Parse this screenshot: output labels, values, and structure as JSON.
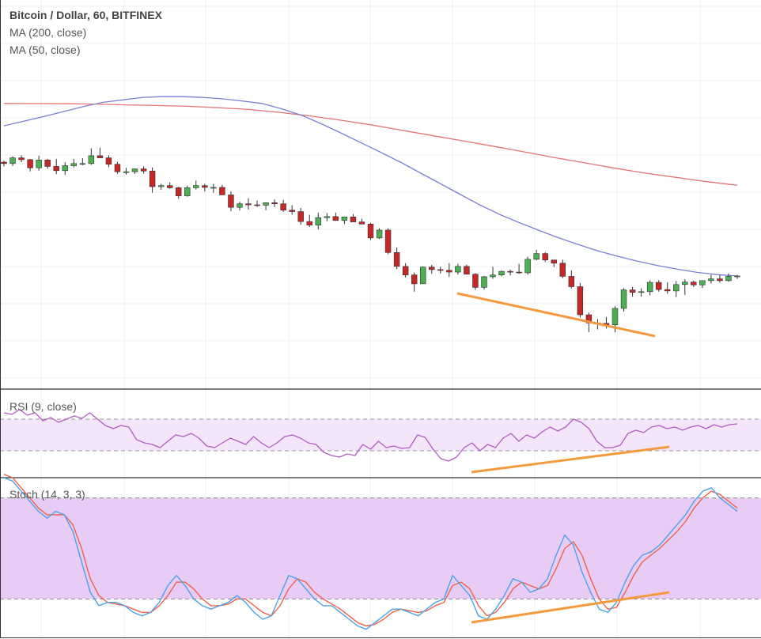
{
  "chart_data": {
    "type": "candlestick",
    "title": "Bitcoin / Dollar, 60, BITFINEX",
    "symbol": "Bitcoin / Dollar",
    "interval": "60",
    "exchange": "BITFINEX",
    "colors": {
      "up": "#4caf50",
      "down": "#c62828",
      "ma200": "#e57373",
      "ma50": "#7b7fd6",
      "rsi": "#b05cc4",
      "stoch_k": "#4aa3e8",
      "stoch_d": "#f0614a",
      "trendline": "#f59a3c",
      "grid": "#eef2f6",
      "rsi_band": "#f3e6fa",
      "stoch_band": "#e8ccf5"
    },
    "price_pane": {
      "ylim": [
        0,
        100
      ],
      "legend": [
        "MA (200, close)",
        "MA (50, close)"
      ],
      "candles": [
        [
          60.0,
          60.4,
          58.8,
          59.6
        ],
        [
          59.6,
          61.6,
          58.9,
          61.2
        ],
        [
          61.2,
          61.9,
          60.0,
          60.7
        ],
        [
          60.7,
          60.9,
          57.4,
          58.4
        ],
        [
          58.4,
          61.8,
          57.6,
          60.6
        ],
        [
          60.6,
          60.9,
          58.1,
          58.8
        ],
        [
          58.8,
          60.9,
          56.6,
          57.6
        ],
        [
          57.6,
          60.0,
          56.4,
          59.0
        ],
        [
          59.0,
          60.9,
          58.5,
          59.6
        ],
        [
          59.6,
          61.1,
          59.1,
          59.6
        ],
        [
          59.6,
          63.9,
          59.2,
          61.8
        ],
        [
          61.8,
          64.1,
          61.6,
          61.2
        ],
        [
          61.2,
          61.9,
          58.6,
          59.4
        ],
        [
          59.4,
          60.1,
          56.7,
          57.3
        ],
        [
          57.3,
          58.4,
          56.5,
          57.3
        ],
        [
          57.3,
          58.2,
          56.7,
          58.1
        ],
        [
          58.1,
          58.8,
          56.8,
          57.5
        ],
        [
          57.5,
          58.5,
          51.4,
          53.1
        ],
        [
          53.1,
          53.9,
          52.2,
          53.4
        ],
        [
          53.4,
          54.3,
          52.5,
          52.8
        ],
        [
          52.8,
          53.1,
          49.7,
          50.5
        ],
        [
          50.5,
          53.4,
          50.3,
          52.8
        ],
        [
          52.8,
          54.8,
          52.3,
          53.4
        ],
        [
          53.4,
          53.9,
          51.8,
          52.9
        ],
        [
          52.9,
          53.9,
          51.4,
          52.9
        ],
        [
          52.9,
          53.6,
          51.3,
          50.8
        ],
        [
          50.8,
          51.8,
          46.2,
          47.3
        ],
        [
          47.3,
          48.9,
          46.4,
          48.3
        ],
        [
          48.3,
          49.9,
          46.7,
          48.0
        ],
        [
          48.0,
          49.2,
          47.4,
          47.9
        ],
        [
          47.9,
          48.6,
          46.5,
          48.6
        ],
        [
          48.6,
          49.5,
          47.4,
          48.3
        ],
        [
          48.3,
          49.4,
          46.0,
          46.5
        ],
        [
          46.5,
          47.9,
          45.2,
          46.1
        ],
        [
          46.1,
          47.1,
          42.4,
          43.3
        ],
        [
          43.3,
          45.2,
          41.8,
          42.3
        ],
        [
          42.3,
          45.8,
          41.1,
          44.4
        ],
        [
          44.4,
          45.7,
          43.4,
          44.7
        ],
        [
          44.7,
          45.8,
          43.5,
          43.6
        ],
        [
          43.6,
          44.7,
          42.6,
          44.6
        ],
        [
          44.6,
          45.4,
          43.7,
          43.2
        ],
        [
          43.2,
          44.1,
          42.6,
          42.6
        ],
        [
          42.6,
          42.9,
          38.1,
          38.7
        ],
        [
          38.7,
          41.4,
          38.4,
          40.9
        ],
        [
          40.9,
          41.4,
          34.1,
          34.6
        ],
        [
          34.6,
          36.0,
          29.9,
          30.7
        ],
        [
          30.7,
          31.6,
          27.6,
          28.3
        ],
        [
          28.3,
          29.0,
          23.6,
          25.8
        ],
        [
          25.8,
          30.7,
          25.8,
          30.5
        ],
        [
          30.5,
          31.1,
          28.6,
          29.8
        ],
        [
          29.8,
          30.6,
          28.7,
          29.6
        ],
        [
          29.6,
          31.6,
          27.7,
          29.1
        ],
        [
          29.1,
          31.4,
          28.4,
          30.7
        ],
        [
          30.7,
          31.2,
          28.9,
          28.5
        ],
        [
          28.5,
          28.8,
          24.1,
          24.8
        ],
        [
          24.8,
          28.0,
          24.2,
          27.8
        ],
        [
          27.8,
          30.6,
          27.2,
          28.3
        ],
        [
          28.3,
          29.5,
          27.9,
          29.3
        ],
        [
          29.3,
          29.8,
          28.2,
          29.1
        ],
        [
          29.1,
          31.4,
          28.6,
          28.9
        ],
        [
          28.9,
          33.4,
          28.4,
          32.7
        ],
        [
          32.7,
          35.4,
          32.4,
          34.3
        ],
        [
          34.3,
          34.7,
          31.9,
          32.5
        ],
        [
          32.5,
          32.3,
          30.5,
          31.6
        ],
        [
          31.6,
          32.6,
          27.4,
          27.9
        ],
        [
          27.9,
          29.6,
          24.5,
          25.0
        ],
        [
          25.0,
          26.1,
          16.3,
          17.1
        ],
        [
          17.1,
          17.7,
          12.2,
          14.8
        ],
        [
          14.8,
          15.9,
          13.0,
          14.7
        ],
        [
          14.7,
          16.5,
          13.3,
          14.3
        ],
        [
          14.3,
          19.5,
          12.2,
          18.9
        ],
        [
          18.9,
          24.6,
          18.0,
          24.1
        ],
        [
          24.1,
          24.9,
          22.2,
          23.4
        ],
        [
          23.4,
          24.5,
          22.2,
          23.6
        ],
        [
          23.6,
          26.8,
          22.6,
          26.2
        ],
        [
          26.2,
          26.8,
          23.6,
          24.2
        ],
        [
          24.2,
          26.2,
          23.0,
          23.8
        ],
        [
          23.8,
          26.6,
          22.1,
          25.6
        ],
        [
          25.6,
          27.1,
          22.7,
          26.3
        ],
        [
          26.3,
          26.7,
          24.9,
          25.5
        ],
        [
          25.5,
          26.5,
          24.6,
          26.7
        ],
        [
          26.7,
          28.4,
          25.9,
          27.2
        ],
        [
          27.2,
          28.3,
          26.1,
          26.7
        ],
        [
          26.7,
          28.7,
          26.4,
          27.9
        ],
        [
          27.9,
          28.3,
          27.2,
          28.0
        ]
      ]
    },
    "ma200": [
      76.5,
      76.45,
      76.4,
      76.3,
      76.1,
      75.9,
      75.7,
      75.3,
      74.8,
      74.0,
      73.0,
      71.8,
      70.5,
      69.0,
      67.5,
      66.0,
      64.5,
      62.9,
      61.3,
      59.8,
      58.3,
      56.9,
      55.7,
      54.5,
      53.5
    ],
    "ma50": [
      70.2,
      71.5,
      72.8,
      74.2,
      75.6,
      76.8,
      77.5,
      78.2,
      78.4,
      78.4,
      78.2,
      77.8,
      77.2,
      76.5,
      75.0,
      73.2,
      70.8,
      68.2,
      65.5,
      62.8,
      60.0,
      57.0,
      54.0,
      51.0,
      48.0,
      45.3,
      43.0,
      40.8,
      38.7,
      36.8,
      35.0,
      33.5,
      32.1,
      30.9,
      29.9,
      29.0,
      28.4,
      28.0
    ],
    "rsi": {
      "label": "RSI (9, close)",
      "ylim": [
        0,
        100
      ],
      "band": [
        30,
        70
      ],
      "values": [
        78,
        76,
        82,
        75,
        78,
        68,
        72,
        66,
        70,
        74,
        71,
        78,
        70,
        62,
        58,
        62,
        60,
        44,
        40,
        38,
        34,
        42,
        50,
        48,
        52,
        46,
        36,
        34,
        40,
        46,
        42,
        38,
        48,
        40,
        34,
        40,
        48,
        50,
        46,
        40,
        38,
        28,
        24,
        22,
        26,
        24,
        38,
        32,
        42,
        34,
        36,
        33,
        34,
        50,
        47,
        32,
        20,
        17,
        22,
        34,
        40,
        30,
        38,
        34,
        46,
        52,
        42,
        50,
        46,
        54,
        60,
        55,
        60,
        70,
        66,
        58,
        42,
        34,
        34,
        37,
        52,
        56,
        53,
        60,
        62,
        58,
        60,
        56,
        60,
        62,
        58,
        63,
        60,
        63,
        64
      ]
    },
    "stochastic": {
      "label": "Stoch (14, 3, 3)",
      "ylim": [
        0,
        100
      ],
      "band": [
        20,
        80
      ],
      "k": [
        92,
        90,
        84,
        78,
        72,
        68,
        72,
        70,
        60,
        42,
        24,
        16,
        18,
        18,
        16,
        12,
        10,
        12,
        18,
        28,
        34,
        28,
        20,
        16,
        14,
        16,
        18,
        22,
        18,
        12,
        8,
        10,
        22,
        34,
        32,
        26,
        20,
        16,
        16,
        12,
        8,
        4,
        2,
        6,
        10,
        14,
        14,
        12,
        10,
        14,
        18,
        20,
        34,
        28,
        22,
        10,
        8,
        14,
        22,
        32,
        30,
        24,
        26,
        32,
        46,
        58,
        52,
        36,
        24,
        14,
        12,
        18,
        30,
        40,
        46,
        48,
        52,
        58,
        64,
        70,
        78,
        84,
        86,
        80,
        76,
        72
      ],
      "d": [
        94,
        92,
        86,
        80,
        74,
        70,
        70,
        70,
        64,
        50,
        32,
        22,
        18,
        17,
        16,
        14,
        12,
        12,
        16,
        22,
        30,
        30,
        26,
        20,
        16,
        16,
        17,
        20,
        20,
        16,
        12,
        10,
        16,
        26,
        32,
        30,
        24,
        20,
        17,
        14,
        10,
        6,
        4,
        5,
        8,
        12,
        14,
        13,
        12,
        13,
        16,
        18,
        28,
        30,
        26,
        16,
        10,
        12,
        18,
        26,
        30,
        28,
        26,
        28,
        38,
        50,
        54,
        46,
        32,
        20,
        14,
        15,
        24,
        34,
        42,
        46,
        50,
        55,
        60,
        66,
        74,
        80,
        84,
        82,
        78,
        74
      ]
    }
  }
}
